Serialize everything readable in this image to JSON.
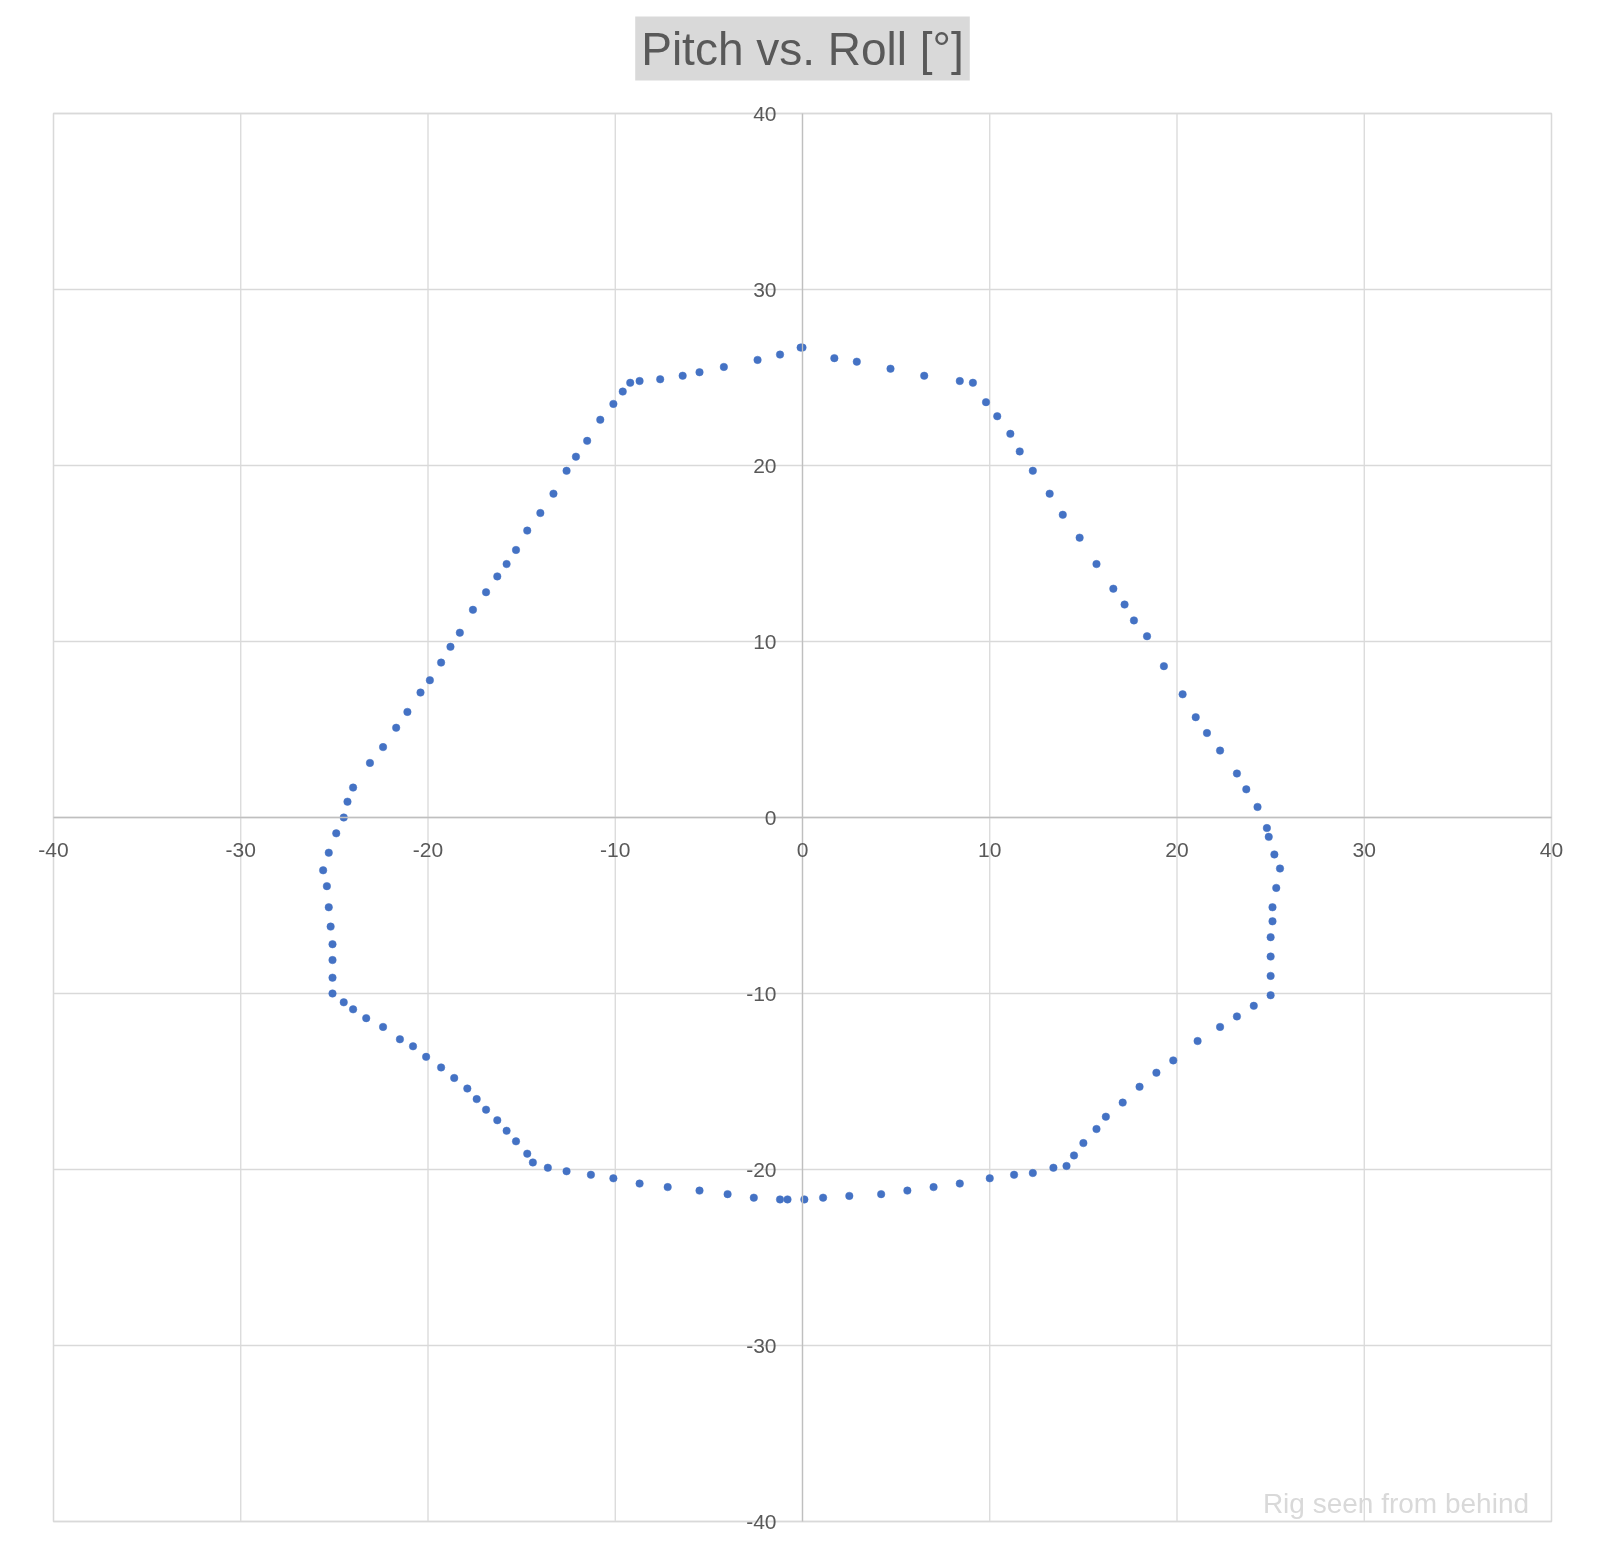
{
  "chart_data": {
    "type": "scatter",
    "title": "Pitch vs. Roll [°]",
    "annotations": [
      "Rig seen from behind"
    ],
    "x": [
      0,
      1.7,
      2.9,
      4.7,
      6.5,
      8.4,
      9.1,
      9.8,
      10.4,
      11.1,
      11.6,
      12.3,
      13.2,
      13.9,
      14.8,
      15.7,
      16.6,
      17.2,
      17.7,
      18.4,
      19.3,
      20.3,
      21.0,
      21.6,
      22.3,
      23.2,
      23.7,
      24.3,
      24.8,
      24.9,
      25.2,
      25.5,
      25.3,
      25.1,
      25.1,
      25.0,
      25.0,
      25.0,
      25.0,
      24.1,
      23.2,
      22.3,
      21.1,
      19.8,
      18.9,
      18.0,
      17.1,
      16.2,
      15.7,
      15.0,
      14.5,
      14.1,
      13.4,
      12.3,
      11.3,
      10.0,
      8.4,
      7.0,
      5.6,
      4.2,
      2.5,
      1.1,
      0.1,
      -0.8,
      -1.2,
      -2.6,
      -4.0,
      -5.5,
      -7.2,
      -8.7,
      -10.1,
      -11.3,
      -12.6,
      -13.6,
      -14.4,
      -14.7,
      -15.3,
      -15.8,
      -16.3,
      -16.9,
      -17.4,
      -17.9,
      -18.6,
      -19.3,
      -20.1,
      -20.8,
      -21.5,
      -22.4,
      -23.3,
      -24.0,
      -24.5,
      -25.1,
      -25.1,
      -25.1,
      -25.1,
      -25.2,
      -25.3,
      -25.4,
      -25.6,
      -25.3,
      -24.9,
      -24.5,
      -24.3,
      -24.0,
      -23.1,
      -22.4,
      -21.7,
      -21.1,
      -20.4,
      -19.9,
      -19.3,
      -18.8,
      -18.3,
      -17.6,
      -16.9,
      -16.3,
      -15.8,
      -15.3,
      -14.7,
      -14.0,
      -13.3,
      -12.6,
      -12.1,
      -11.5,
      -10.8,
      -10.1,
      -9.6,
      -9.2,
      -8.7,
      -7.6,
      -6.4,
      -5.5,
      -4.2,
      -2.4,
      -1.2,
      -0.1
    ],
    "values": [
      26.7,
      26.1,
      25.9,
      25.5,
      25.1,
      24.8,
      24.7,
      23.6,
      22.8,
      21.8,
      20.8,
      19.7,
      18.4,
      17.2,
      15.9,
      14.4,
      13.0,
      12.1,
      11.2,
      10.3,
      8.6,
      7.0,
      5.7,
      4.8,
      3.8,
      2.5,
      1.6,
      0.6,
      -0.6,
      -1.1,
      -2.1,
      -2.9,
      -4.0,
      -5.1,
      -5.9,
      -6.8,
      -7.9,
      -9.0,
      -10.1,
      -10.7,
      -11.3,
      -11.9,
      -12.7,
      -13.8,
      -14.5,
      -15.3,
      -16.2,
      -17.0,
      -17.7,
      -18.5,
      -19.2,
      -19.8,
      -19.9,
      -20.2,
      -20.3,
      -20.5,
      -20.8,
      -21.0,
      -21.2,
      -21.4,
      -21.5,
      -21.6,
      -21.7,
      -21.7,
      -21.7,
      -21.6,
      -21.4,
      -21.2,
      -21.0,
      -20.8,
      -20.5,
      -20.3,
      -20.1,
      -19.9,
      -19.6,
      -19.1,
      -18.4,
      -17.8,
      -17.2,
      -16.6,
      -16.0,
      -15.4,
      -14.8,
      -14.2,
      -13.6,
      -13.0,
      -12.6,
      -11.9,
      -11.4,
      -10.9,
      -10.5,
      -10.0,
      -9.1,
      -8.1,
      -7.2,
      -6.2,
      -5.1,
      -3.9,
      -3.0,
      -2.0,
      -0.9,
      0.0,
      0.9,
      1.7,
      3.1,
      4.0,
      5.1,
      6.0,
      7.1,
      7.8,
      8.8,
      9.7,
      10.5,
      11.8,
      12.8,
      13.7,
      14.4,
      15.2,
      16.3,
      17.3,
      18.4,
      19.7,
      20.5,
      21.4,
      22.6,
      23.5,
      24.2,
      24.7,
      24.8,
      24.9,
      25.1,
      25.3,
      25.6,
      26.0,
      26.3,
      26.7
    ],
    "color": "#4472c4",
    "marker": "circle",
    "xlim": [
      -40,
      40
    ],
    "ylim": [
      -40,
      40
    ],
    "xticks": [
      -40,
      -30,
      -20,
      -10,
      0,
      10,
      20,
      30,
      40
    ],
    "yticks": [
      -40,
      -30,
      -20,
      -10,
      0,
      10,
      20,
      30,
      40
    ],
    "grid": true
  }
}
